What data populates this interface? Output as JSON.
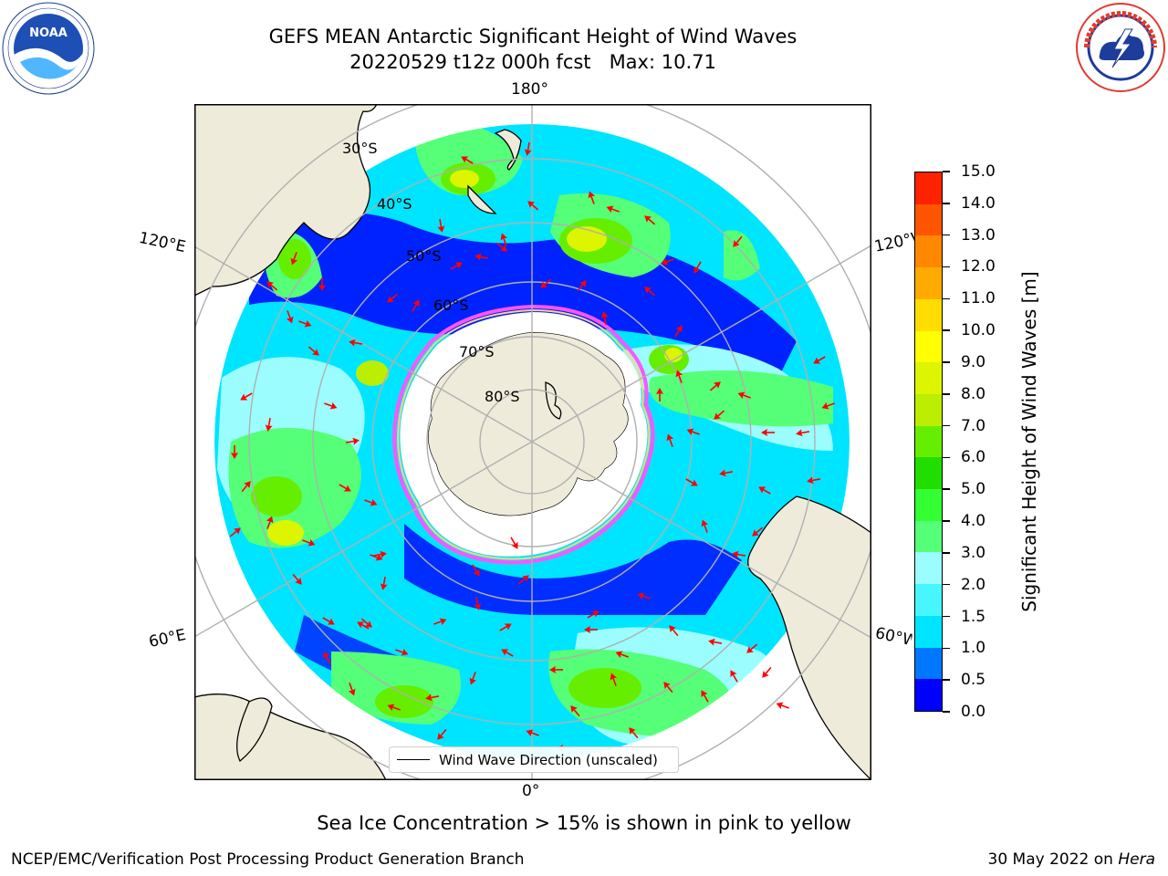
{
  "header": {
    "title_line1": "GEFS MEAN Antarctic Significant Height of Wind Waves",
    "title_line2": "20220529 t12z 000h fcst   Max: 10.71"
  },
  "logos": {
    "noaa": {
      "text": "NOAA",
      "ring_text": "NATIONAL OCEANIC AND ATMOSPHERIC ADMINISTRATION · U.S. DEPARTMENT OF COMMERCE"
    },
    "nws": {
      "ring_text": "NATIONAL WEATHER SERVICE"
    }
  },
  "map": {
    "projection": "south-polar-stereographic",
    "longitude_labels": {
      "top": "180°",
      "bottom": "0°",
      "left_upper": "120°E",
      "left_lower": "60°E",
      "right_upper": "120°W",
      "right_lower": "60°W"
    },
    "latitude_labels": [
      "30°S",
      "40°S",
      "50°S",
      "60°S",
      "70°S",
      "80°S"
    ],
    "legend_text": "Wind Wave Direction (unscaled)",
    "colors": {
      "land": "#efebda",
      "ice_interior": "#ffffff",
      "ice_edge": [
        "#ff55ff",
        "#ffd27f"
      ],
      "gridlines": "#b0b0b0",
      "arrows": "#ff0000"
    }
  },
  "colorbar": {
    "title": "Significant Height of Wind Waves [m]",
    "tick_labels": [
      "0.0",
      "0.5",
      "1.0",
      "1.5",
      "2.0",
      "3.0",
      "4.0",
      "5.0",
      "6.0",
      "7.0",
      "8.0",
      "9.0",
      "10.0",
      "11.0",
      "12.0",
      "13.0",
      "14.0",
      "15.0"
    ],
    "bin_colors": [
      "#0000ff",
      "#0077ff",
      "#00e5ff",
      "#48f6ff",
      "#9bfdfd",
      "#55ff77",
      "#33ff33",
      "#22dd00",
      "#66ee00",
      "#bbee00",
      "#ddf500",
      "#ffff00",
      "#ffdd00",
      "#ffaa00",
      "#ff8800",
      "#ff5500",
      "#ff2200"
    ]
  },
  "footer": {
    "note": "Sea Ice Concentration > 15% is shown in pink to yellow",
    "credit": "NCEP/EMC/Verification Post Processing Product Generation Branch",
    "date": "30 May 2022 on",
    "machine": "Hera"
  }
}
